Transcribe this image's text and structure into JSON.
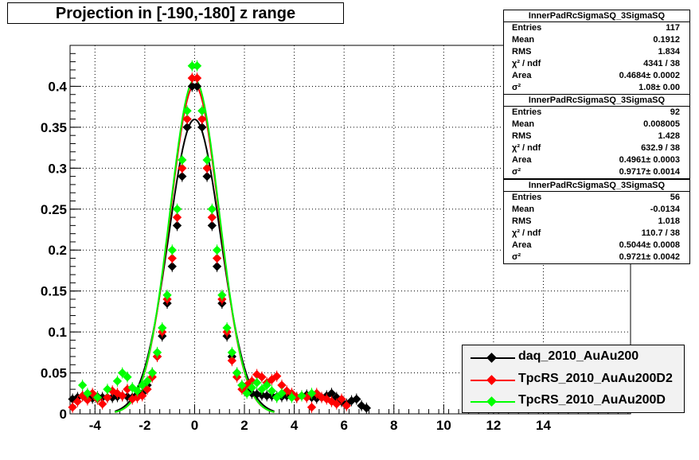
{
  "title": "Projection in [-190,-180] z range",
  "stats": [
    {
      "name": "InnerPadRcSigmaSQ_3SigmaSQ",
      "rows": [
        {
          "key": "Entries",
          "value": "117"
        },
        {
          "key": "Mean",
          "value": "0.1912"
        },
        {
          "key": "RMS",
          "value": "1.834"
        },
        {
          "key": "χ² / ndf",
          "value": "4341 / 38"
        },
        {
          "key": "Area",
          "value": "0.4684± 0.0002"
        },
        {
          "key": "σ²",
          "value": "1.08± 0.00"
        }
      ]
    },
    {
      "name": "InnerPadRcSigmaSQ_3SigmaSQ",
      "rows": [
        {
          "key": "Entries",
          "value": "92"
        },
        {
          "key": "Mean",
          "value": "0.008005"
        },
        {
          "key": "RMS",
          "value": "1.428"
        },
        {
          "key": "χ² / ndf",
          "value": "632.9 / 38"
        },
        {
          "key": "Area",
          "value": "0.4961± 0.0003"
        },
        {
          "key": "σ²",
          "value": "0.9717± 0.0014"
        }
      ]
    },
    {
      "name": "InnerPadRcSigmaSQ_3SigmaSQ",
      "rows": [
        {
          "key": "Entries",
          "value": "56"
        },
        {
          "key": "Mean",
          "value": "-0.0134"
        },
        {
          "key": "RMS",
          "value": "1.018"
        },
        {
          "key": "χ² / ndf",
          "value": "110.7 / 38"
        },
        {
          "key": "Area",
          "value": "0.5044± 0.0008"
        },
        {
          "key": "σ²",
          "value": "0.9721± 0.0042"
        }
      ]
    }
  ],
  "chart_data": {
    "type": "scatter",
    "title": "Projection in [-190,-180] z range",
    "xlim": [
      -5,
      17.5
    ],
    "ylim": [
      0,
      0.45
    ],
    "x_ticks": [
      -4,
      -2,
      0,
      2,
      4,
      6,
      8,
      10,
      12,
      14
    ],
    "x_tick_labels": [
      "-4",
      "-2",
      "0",
      "2",
      "4",
      "6",
      "8",
      "10",
      "12",
      "14"
    ],
    "y_ticks": [
      0,
      0.05,
      0.1,
      0.15,
      0.2,
      0.25,
      0.3,
      0.35,
      0.4
    ],
    "y_tick_labels": [
      "0",
      "0.05",
      "0.1",
      "0.15",
      "0.2",
      "0.25",
      "0.3",
      "0.35",
      "0.4"
    ],
    "grid": true,
    "legend_position": "bottom-right",
    "series": [
      {
        "name": "daq_2010_AuAu200",
        "color": "#000000",
        "fit": {
          "area": 0.4684,
          "sigma2": 1.08
        },
        "points": [
          [
            -4.9,
            0.018
          ],
          [
            -4.7,
            0.02
          ],
          [
            -4.5,
            0.022
          ],
          [
            -4.3,
            0.02
          ],
          [
            -4.1,
            0.019
          ],
          [
            -3.9,
            0.021
          ],
          [
            -3.7,
            0.02
          ],
          [
            -3.5,
            0.02
          ],
          [
            -3.3,
            0.02
          ],
          [
            -3.1,
            0.021
          ],
          [
            -2.9,
            0.022
          ],
          [
            -2.7,
            0.021
          ],
          [
            -2.5,
            0.02
          ],
          [
            -2.3,
            0.022
          ],
          [
            -2.1,
            0.025
          ],
          [
            -1.9,
            0.035
          ],
          [
            -1.7,
            0.05
          ],
          [
            -1.5,
            0.07
          ],
          [
            -1.3,
            0.095
          ],
          [
            -1.1,
            0.135
          ],
          [
            -0.9,
            0.18
          ],
          [
            -0.7,
            0.23
          ],
          [
            -0.5,
            0.29
          ],
          [
            -0.3,
            0.35
          ],
          [
            -0.1,
            0.4
          ],
          [
            0.1,
            0.4
          ],
          [
            0.3,
            0.35
          ],
          [
            0.5,
            0.29
          ],
          [
            0.7,
            0.23
          ],
          [
            0.9,
            0.18
          ],
          [
            1.1,
            0.135
          ],
          [
            1.3,
            0.095
          ],
          [
            1.5,
            0.07
          ],
          [
            1.7,
            0.05
          ],
          [
            1.9,
            0.035
          ],
          [
            2.1,
            0.028
          ],
          [
            2.3,
            0.025
          ],
          [
            2.5,
            0.024
          ],
          [
            2.7,
            0.023
          ],
          [
            2.9,
            0.022
          ],
          [
            3.1,
            0.022
          ],
          [
            3.3,
            0.021
          ],
          [
            3.5,
            0.021
          ],
          [
            3.7,
            0.022
          ],
          [
            3.9,
            0.021
          ],
          [
            4.1,
            0.02
          ],
          [
            4.3,
            0.022
          ],
          [
            4.5,
            0.023
          ],
          [
            4.7,
            0.02
          ],
          [
            4.9,
            0.019
          ],
          [
            5.1,
            0.02
          ],
          [
            5.3,
            0.022
          ],
          [
            5.5,
            0.025
          ],
          [
            5.7,
            0.02
          ],
          [
            5.9,
            0.015
          ],
          [
            6.1,
            0.012
          ],
          [
            6.3,
            0.016
          ],
          [
            6.5,
            0.018
          ],
          [
            6.7,
            0.01
          ],
          [
            6.9,
            0.007
          ]
        ]
      },
      {
        "name": "TpcRS_2010_AuAu200D2",
        "color": "#ff0000",
        "fit": {
          "area": 0.4961,
          "sigma2": 0.9717
        },
        "points": [
          [
            -4.9,
            0.008
          ],
          [
            -4.7,
            0.015
          ],
          [
            -4.5,
            0.022
          ],
          [
            -4.3,
            0.017
          ],
          [
            -4.1,
            0.025
          ],
          [
            -3.9,
            0.018
          ],
          [
            -3.7,
            0.012
          ],
          [
            -3.5,
            0.02
          ],
          [
            -3.3,
            0.028
          ],
          [
            -3.1,
            0.025
          ],
          [
            -2.9,
            0.022
          ],
          [
            -2.7,
            0.03
          ],
          [
            -2.5,
            0.018
          ],
          [
            -2.3,
            0.02
          ],
          [
            -2.1,
            0.022
          ],
          [
            -1.9,
            0.03
          ],
          [
            -1.7,
            0.045
          ],
          [
            -1.5,
            0.07
          ],
          [
            -1.3,
            0.1
          ],
          [
            -1.1,
            0.14
          ],
          [
            -0.9,
            0.19
          ],
          [
            -0.7,
            0.24
          ],
          [
            -0.5,
            0.3
          ],
          [
            -0.3,
            0.36
          ],
          [
            -0.1,
            0.41
          ],
          [
            0.1,
            0.41
          ],
          [
            0.3,
            0.36
          ],
          [
            0.5,
            0.3
          ],
          [
            0.7,
            0.24
          ],
          [
            0.9,
            0.19
          ],
          [
            1.1,
            0.14
          ],
          [
            1.3,
            0.1
          ],
          [
            1.5,
            0.065
          ],
          [
            1.7,
            0.045
          ],
          [
            1.9,
            0.03
          ],
          [
            2.1,
            0.035
          ],
          [
            2.3,
            0.04
          ],
          [
            2.5,
            0.048
          ],
          [
            2.7,
            0.045
          ],
          [
            2.9,
            0.038
          ],
          [
            3.1,
            0.042
          ],
          [
            3.3,
            0.046
          ],
          [
            3.5,
            0.035
          ],
          [
            3.7,
            0.028
          ],
          [
            3.9,
            0.025
          ],
          [
            4.1,
            0.02
          ],
          [
            4.3,
            0.022
          ],
          [
            4.5,
            0.02
          ],
          [
            4.7,
            0.008
          ],
          [
            4.9,
            0.025
          ],
          [
            5.1,
            0.02
          ],
          [
            5.3,
            0.018
          ],
          [
            5.5,
            0.015
          ],
          [
            5.7,
            0.012
          ],
          [
            5.9,
            0.018
          ],
          [
            6.1,
            0.01
          ]
        ]
      },
      {
        "name": "TpcRS_2010_AuAu200D",
        "color": "#00ff00",
        "fit": {
          "area": 0.5044,
          "sigma2": 0.9721
        },
        "points": [
          [
            -4.5,
            0.035
          ],
          [
            -4.3,
            0.025
          ],
          [
            -3.9,
            0.02
          ],
          [
            -3.5,
            0.03
          ],
          [
            -3.1,
            0.04
          ],
          [
            -2.9,
            0.05
          ],
          [
            -2.7,
            0.045
          ],
          [
            -2.5,
            0.032
          ],
          [
            -2.3,
            0.028
          ],
          [
            -2.1,
            0.035
          ],
          [
            -1.9,
            0.04
          ],
          [
            -1.7,
            0.05
          ],
          [
            -1.5,
            0.075
          ],
          [
            -1.3,
            0.105
          ],
          [
            -1.1,
            0.145
          ],
          [
            -0.9,
            0.2
          ],
          [
            -0.7,
            0.25
          ],
          [
            -0.5,
            0.31
          ],
          [
            -0.3,
            0.37
          ],
          [
            -0.1,
            0.425
          ],
          [
            0.1,
            0.425
          ],
          [
            0.3,
            0.37
          ],
          [
            0.5,
            0.31
          ],
          [
            0.7,
            0.25
          ],
          [
            0.9,
            0.2
          ],
          [
            1.1,
            0.145
          ],
          [
            1.3,
            0.105
          ],
          [
            1.5,
            0.075
          ],
          [
            1.7,
            0.05
          ],
          [
            1.9,
            0.035
          ],
          [
            2.1,
            0.025
          ],
          [
            2.3,
            0.032
          ],
          [
            2.5,
            0.038
          ],
          [
            2.7,
            0.03
          ],
          [
            2.9,
            0.035
          ],
          [
            3.1,
            0.028
          ],
          [
            3.3,
            0.02
          ],
          [
            3.5,
            0.025
          ],
          [
            3.9,
            0.02
          ],
          [
            4.3,
            0.022
          ],
          [
            4.7,
            0.025
          ]
        ]
      }
    ]
  }
}
